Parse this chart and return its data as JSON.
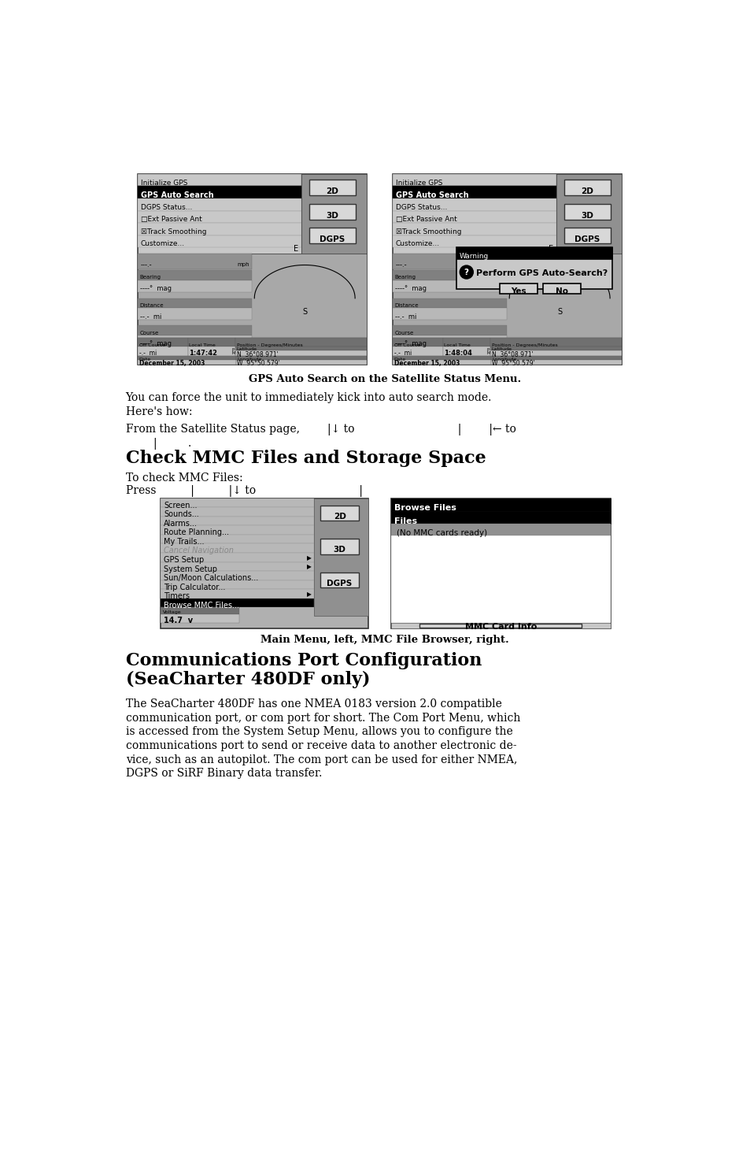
{
  "bg_color": "#ffffff",
  "caption1": "GPS Auto Search on the Satellite Status Menu.",
  "para1_line1": "You can force the unit to immediately kick into auto search mode.",
  "para1_line2": "Here's how:",
  "from_line1": "From the Satellite Status page,        |↓ to                              |        |← to",
  "from_line2": "        |         .",
  "heading1": "Check MMC Files and Storage Space",
  "para2": "To check MMC Files:",
  "press_line": "Press          |          |↓ to                              |",
  "caption2": "Main Menu, left, MMC File Browser, right.",
  "heading2a": "Communications Port Configuration",
  "heading2b": "(SeaCharter 480DF only)",
  "para3_line1": "The SeaCharter 480DF has one NMEA 0183 version 2.0 compatible",
  "para3_line2": "communication port, or com port for short. The Com Port Menu, which",
  "para3_line3": "is accessed from the System Setup Menu, allows you to configure the",
  "para3_line4": "communications port to send or receive data to another electronic de-",
  "para3_line5": "vice, such as an autopilot. The com port can be used for either NMEA,",
  "para3_line6": "DGPS or SiRF Binary data transfer."
}
